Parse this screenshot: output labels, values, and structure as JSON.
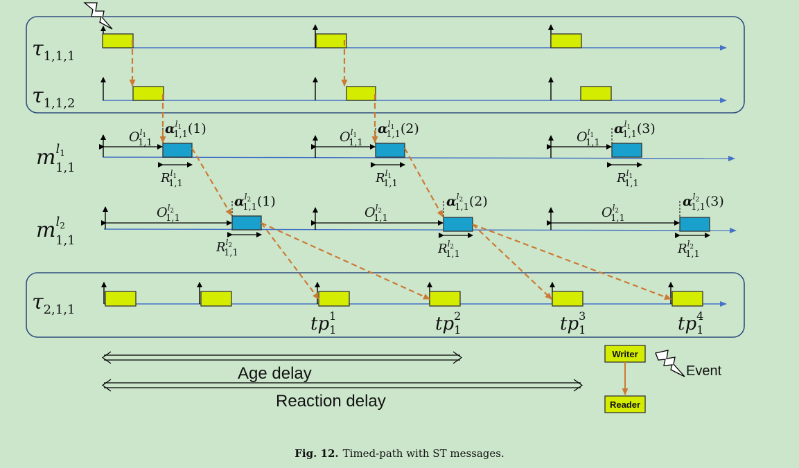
{
  "caption": {
    "label": "Fig. 12.",
    "text": "Timed-path with ST messages."
  },
  "rows": {
    "t111": "τ",
    "t111_sub": "1,1,1",
    "t112": "τ",
    "t112_sub": "1,1,2",
    "m1": "m",
    "m1_sub": "1,1",
    "m1_sup": "l",
    "m1_sup_sub": "1",
    "m2": "m",
    "m2_sub": "1,1",
    "m2_sup": "l",
    "m2_sup_sub": "2",
    "t211": "τ",
    "t211_sub": "2,1,1"
  },
  "symbols": {
    "offset": "O",
    "response": "R",
    "alpha": "α",
    "sub": "1,1",
    "sup_l": "l",
    "l1": "1",
    "l2": "2",
    "idx": [
      "(1)",
      "(2)",
      "(3)"
    ]
  },
  "timepoints": {
    "base": "tp",
    "sub": "1",
    "sups": [
      "1",
      "2",
      "3",
      "4"
    ]
  },
  "delays": {
    "age": "Age delay",
    "reaction": "Reaction delay"
  },
  "legend": {
    "writer": "Writer",
    "reader": "Reader",
    "event": "Event"
  },
  "colors": {
    "background": "#cce6cc",
    "task": "#d4ec00",
    "message": "#1aa0cc",
    "axis": "#4472c4",
    "chain": "#cc7a33",
    "frame": "#2f4f7f"
  },
  "icons": {
    "event": "lightning-icon"
  }
}
